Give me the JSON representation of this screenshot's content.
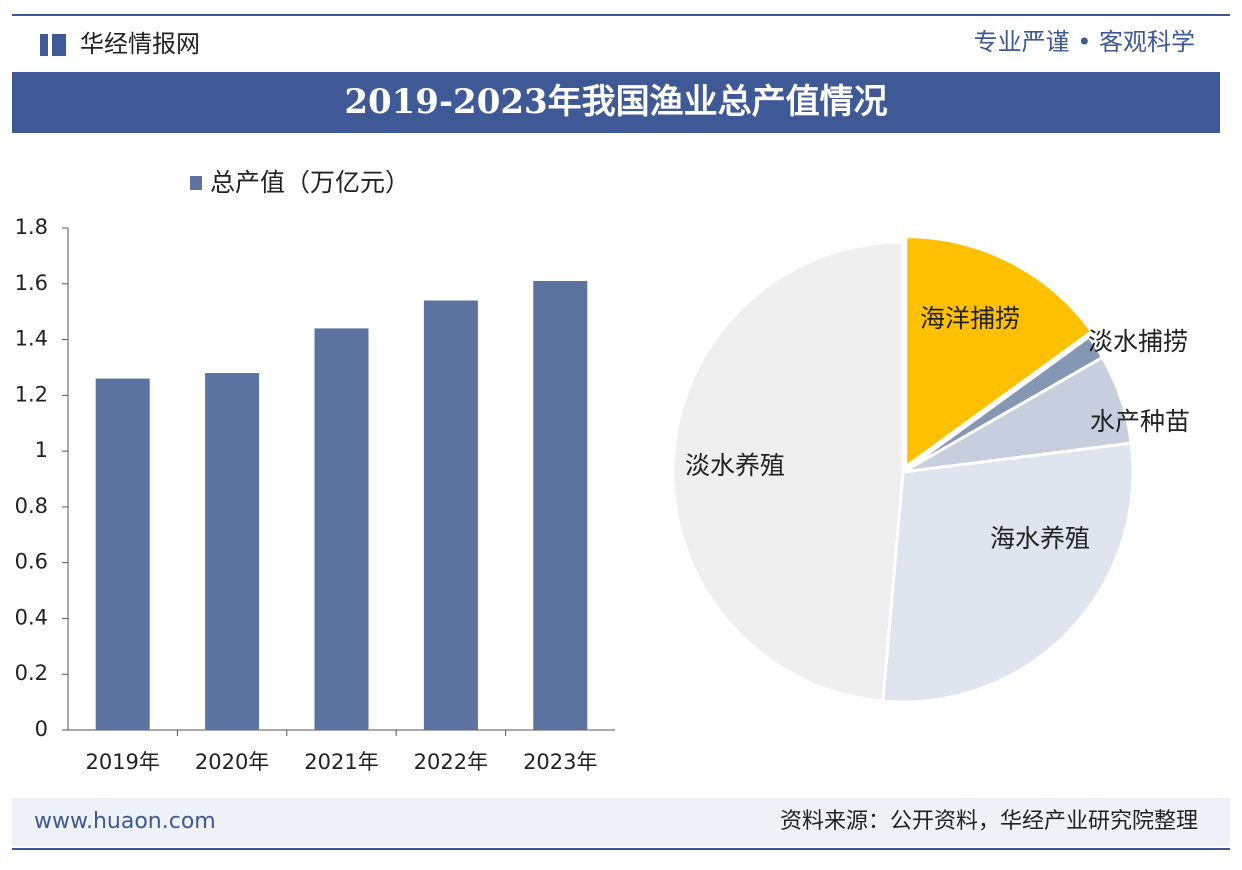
{
  "header": {
    "brand": "华经情报网",
    "slogan": "专业严谨 • 客观科学"
  },
  "title": "2019-2023年我国渔业总产值情况",
  "chart_data": [
    {
      "type": "bar",
      "categories": [
        "2019年",
        "2020年",
        "2021年",
        "2022年",
        "2023年"
      ],
      "series": [
        {
          "name": "总产值（万亿元）",
          "color": "#5b739e",
          "values": [
            1.26,
            1.28,
            1.44,
            1.54,
            1.61
          ]
        }
      ],
      "ylim": [
        0,
        1.8
      ],
      "yticks": [
        0,
        0.2,
        0.4,
        0.6,
        0.8,
        1,
        1.2,
        1.4,
        1.6,
        1.8
      ],
      "legend": "top-left"
    },
    {
      "type": "pie",
      "categories": [
        "海洋捕捞",
        "淡水捕捞",
        "水产种苗",
        "海水养殖",
        "淡水养殖"
      ],
      "values": [
        15,
        1.7,
        6.3,
        28.4,
        48.6
      ],
      "colors": [
        "#ffc000",
        "#8697b4",
        "#c7cfdf",
        "#dfe4ee",
        "#efefef"
      ]
    }
  ],
  "footer": {
    "website": "www.huaon.com",
    "source": "资料来源：公开资料，华经产业研究院整理"
  }
}
